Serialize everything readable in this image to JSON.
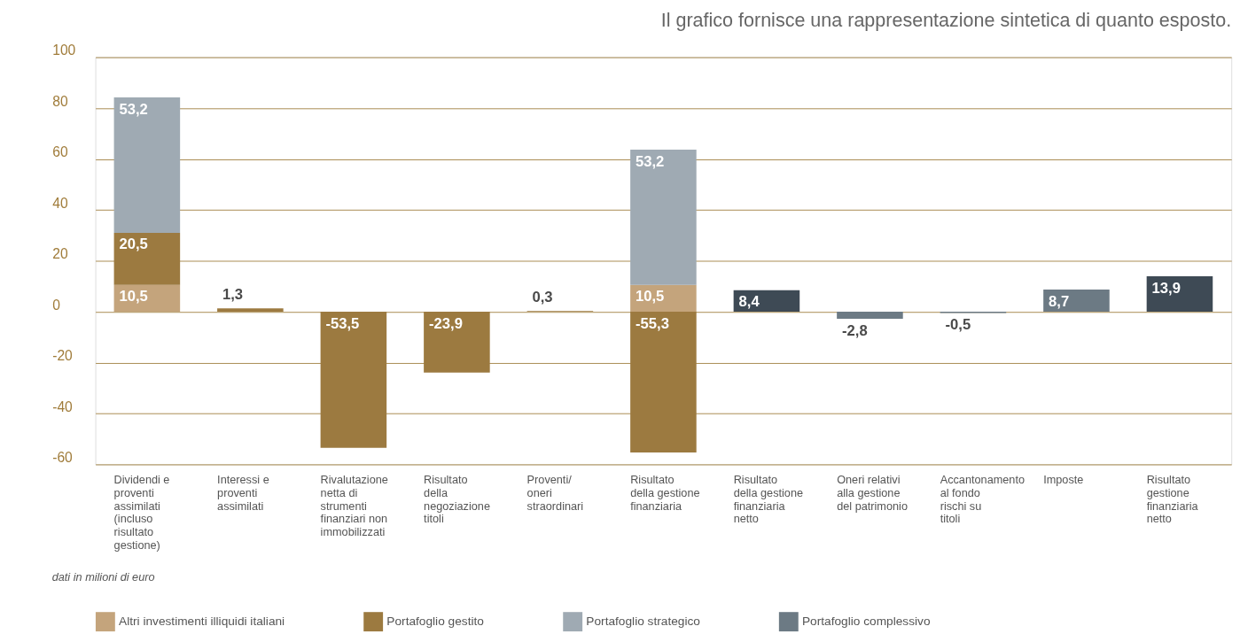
{
  "chart_data": {
    "type": "bar",
    "stacked": true,
    "title": "Il grafico fornisce una rappresentazione sintetica di quanto esposto.",
    "categories": [
      "Dividendi e proventi assimilati (incluso risultato gestione)",
      "Interessi e proventi assimilati",
      "Rivalutazione netta di strumenti finanziari non immobilizzati",
      "Risultato della negoziazione titoli",
      "Proventi/ oneri straordinari",
      "Risultato della gestione finanziaria",
      "Risultato della gestione finanziaria netto",
      "Oneri relativi alla gestione del patrimonio",
      "Accantonamento al fondo rischi su titoli",
      "Imposte",
      "Risultato gestione finanziaria netto"
    ],
    "series": [
      {
        "name": "Altri investimenti illiquidi italiani",
        "color": "#c4a47c",
        "values": [
          10.5,
          null,
          null,
          null,
          null,
          10.5,
          null,
          null,
          null,
          null,
          null
        ],
        "value_labels": [
          "10,5",
          null,
          null,
          null,
          null,
          "10,5",
          null,
          null,
          null,
          null,
          null
        ]
      },
      {
        "name": "Portafoglio gestito",
        "color": "#9c7a40",
        "values": [
          20.5,
          1.3,
          -53.5,
          -23.9,
          0.3,
          -55.3,
          null,
          null,
          null,
          null,
          null
        ],
        "value_labels": [
          "20,5",
          "1,3",
          "-53,5",
          "-23,9",
          "0,3",
          "-55,3",
          null,
          null,
          null,
          null,
          null
        ]
      },
      {
        "name": "Portafoglio strategico",
        "color": "#9faab3",
        "values": [
          53.2,
          null,
          null,
          null,
          null,
          53.2,
          null,
          null,
          null,
          null,
          null
        ],
        "value_labels": [
          "53,2",
          null,
          null,
          null,
          null,
          "53,2",
          null,
          null,
          null,
          null,
          null
        ]
      },
      {
        "name": "Portafoglio complessivo",
        "color": "#6c7a84",
        "values": [
          null,
          null,
          null,
          null,
          null,
          null,
          null,
          -2.8,
          -0.5,
          8.7,
          null
        ],
        "value_labels": [
          null,
          null,
          null,
          null,
          null,
          null,
          null,
          "-2,8",
          "-0,5",
          "8,7",
          null
        ]
      },
      {
        "color": "#3e4a55",
        "values": [
          null,
          null,
          null,
          null,
          null,
          null,
          8.4,
          null,
          null,
          null,
          13.9
        ],
        "value_labels": [
          null,
          null,
          null,
          null,
          null,
          null,
          "8,4",
          null,
          null,
          null,
          "13,9"
        ]
      }
    ],
    "ylim": [
      -60,
      100
    ],
    "yticks": [
      -60,
      -40,
      -20,
      0,
      20,
      40,
      60,
      80,
      100
    ],
    "grid": "y",
    "legend": "bottom",
    "annotations": [
      "dati in milioni di euro"
    ]
  }
}
